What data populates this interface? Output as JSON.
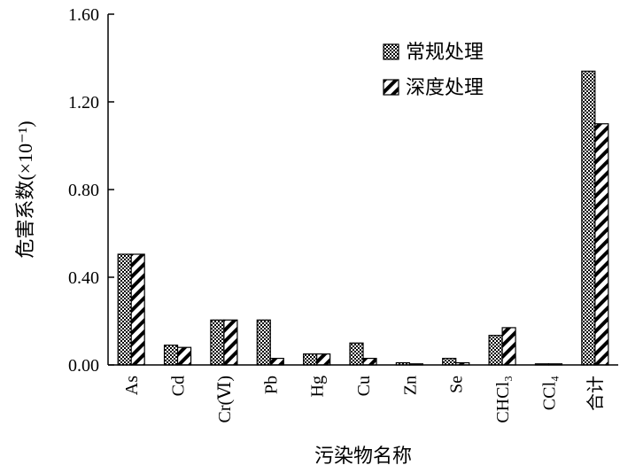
{
  "chart_data": {
    "type": "bar",
    "xlabel": "污染物名称",
    "ylabel": "危害系数(×10⁻¹)",
    "ylim": [
      0,
      1.6
    ],
    "yticks": [
      "0.00",
      "0.40",
      "0.80",
      "1.20",
      "1.60"
    ],
    "ytick_values": [
      0,
      0.4,
      0.8,
      1.2,
      1.6
    ],
    "categories": [
      "As",
      "Cd",
      "Cr(Ⅵ)",
      "Pb",
      "Hg",
      "Cu",
      "Zn",
      "Se",
      "CHCl₃",
      "CCl₄",
      "合计"
    ],
    "series": [
      {
        "name": "常规处理",
        "pattern": "checker",
        "values": [
          0.505,
          0.09,
          0.205,
          0.205,
          0.05,
          0.1,
          0.01,
          0.03,
          0.135,
          0.005,
          1.34
        ]
      },
      {
        "name": "深度处理",
        "pattern": "hatch",
        "values": [
          0.505,
          0.08,
          0.205,
          0.03,
          0.05,
          0.03,
          0.005,
          0.01,
          0.17,
          0.005,
          1.1
        ]
      }
    ],
    "legend": "top-right",
    "grid": false
  }
}
